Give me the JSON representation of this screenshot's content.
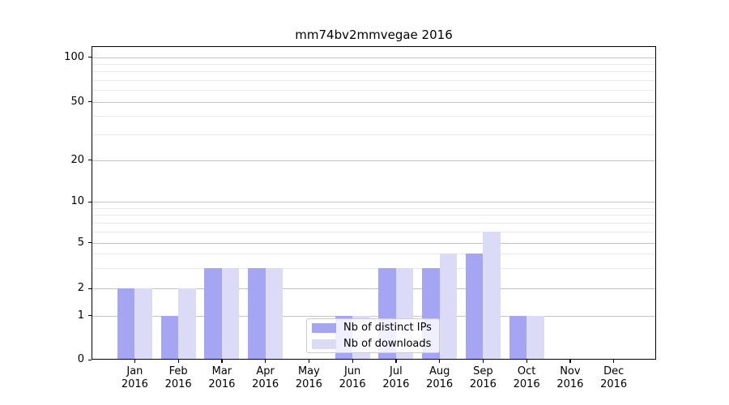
{
  "chart_data": {
    "type": "bar",
    "title": "mm74bv2mmvegae 2016",
    "categories": [
      "Jan",
      "Feb",
      "Mar",
      "Apr",
      "May",
      "Jun",
      "Jul",
      "Aug",
      "Sep",
      "Oct",
      "Nov",
      "Dec"
    ],
    "category_year": "2016",
    "series": [
      {
        "name": "Nb of distinct IPs",
        "color": "#a5a5f3",
        "values": [
          2,
          1,
          3,
          3,
          0,
          1,
          3,
          3,
          4,
          1,
          0,
          0
        ]
      },
      {
        "name": "Nb of downloads",
        "color": "#dbdbf8",
        "values": [
          2,
          2,
          3,
          3,
          0,
          1,
          3,
          4,
          6,
          1,
          0,
          0
        ]
      }
    ],
    "y_axis": {
      "major_ticks": [
        0,
        1,
        2,
        5,
        10,
        20,
        50,
        100
      ],
      "minor_gridlines": [
        3,
        4,
        6,
        7,
        8,
        9,
        30,
        40,
        60,
        70,
        80,
        90
      ],
      "scale": "log-like (linear 0-1 segment)"
    },
    "xlabel": "",
    "ylabel": "",
    "grid": true,
    "legend_position": "lower center",
    "background": "#ffffff"
  },
  "colors": {
    "bar_distinct_ips": "#a5a5f3",
    "bar_downloads": "#dbdbf8",
    "grid_major": "#c4c4c4",
    "grid_minor": "#e9e9e9",
    "axis": "#000000",
    "legend_border": "#cccccc"
  }
}
